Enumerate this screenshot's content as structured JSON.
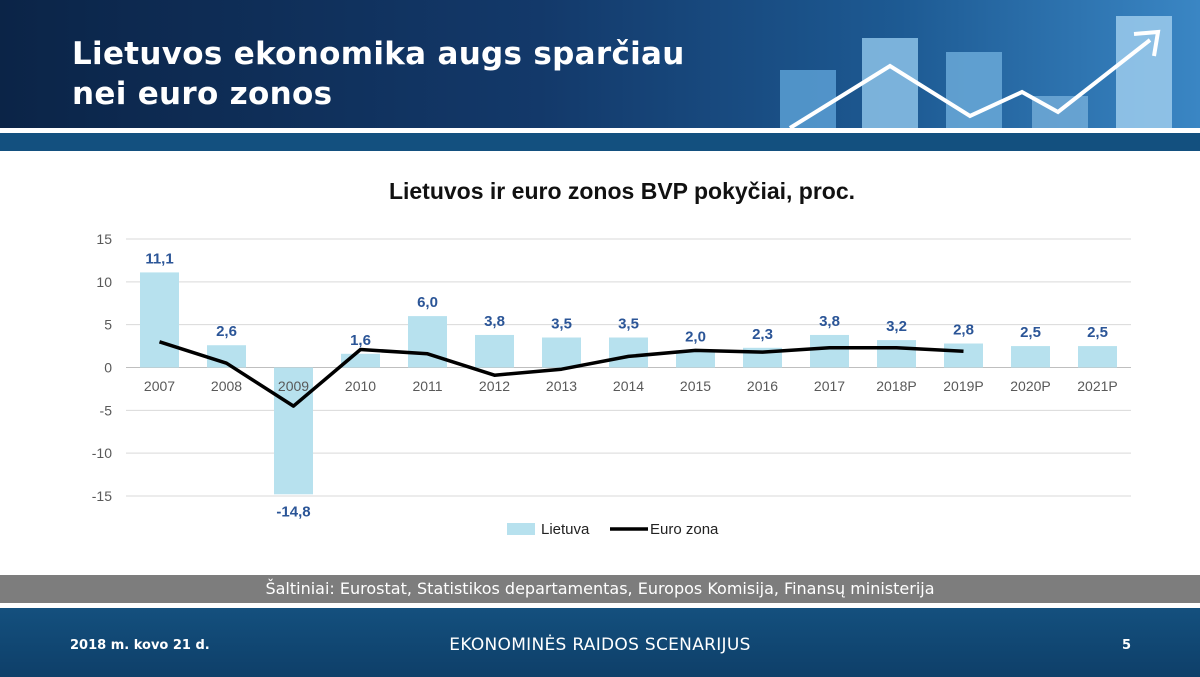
{
  "slide": {
    "title": "Lietuvos ekonomika augs sparčiau nei euro zonos",
    "sources": "Šaltiniai: Eurostat, Statistikos departamentas, Europos Komisija, Finansų ministerija"
  },
  "footer": {
    "date": "2018 m. kovo 21 d.",
    "center": "EKONOMINĖS RAIDOS SCENARIJUS",
    "page": "5"
  },
  "colors": {
    "header_dark": "#0b2447",
    "header_light": "#3a86c4",
    "bar_fill": "#b7e1ee",
    "line": "#000000",
    "label": "#2b5597",
    "sources_bar": "#7d7d7d",
    "footer": "#13507f"
  },
  "chart_data": {
    "type": "bar",
    "title": "Lietuvos ir euro zonos BVP pokyčiai, proc.",
    "xlabel": "",
    "ylabel": "",
    "ylim": [
      -15,
      15
    ],
    "yticks": [
      15,
      10,
      5,
      0,
      -5,
      -10,
      -15
    ],
    "grid": true,
    "legend_position": "bottom",
    "categories": [
      "2007",
      "2008",
      "2009",
      "2010",
      "2011",
      "2012",
      "2013",
      "2014",
      "2015",
      "2016",
      "2017",
      "2018P",
      "2019P",
      "2020P",
      "2021P"
    ],
    "series": [
      {
        "name": "Lietuva",
        "type": "bar",
        "values": [
          11.1,
          2.6,
          -14.8,
          1.6,
          6.0,
          3.8,
          3.5,
          3.5,
          2.0,
          2.3,
          3.8,
          3.2,
          2.8,
          2.5,
          2.5
        ],
        "labels": [
          "11,1",
          "2,6",
          "-14,8",
          "1,6",
          "6,0",
          "3,8",
          "3,5",
          "3,5",
          "2,0",
          "2,3",
          "3,8",
          "3,2",
          "2,8",
          "2,5",
          "2,5"
        ]
      },
      {
        "name": "Euro zona",
        "type": "line",
        "values": [
          3.0,
          0.5,
          -4.5,
          2.1,
          1.6,
          -0.9,
          -0.2,
          1.3,
          2.0,
          1.8,
          2.3,
          2.3,
          1.9,
          null,
          null
        ]
      }
    ]
  }
}
